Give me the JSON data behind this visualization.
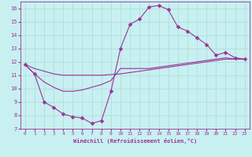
{
  "xlabel": "Windchill (Refroidissement éolien,°C)",
  "bg_color": "#c8f0f0",
  "grid_color": "#b0dede",
  "line_color": "#993399",
  "marker": "D",
  "marker_size": 2.5,
  "xlim": [
    -0.5,
    23.5
  ],
  "ylim": [
    7,
    16.5
  ],
  "xticks": [
    0,
    1,
    2,
    3,
    4,
    5,
    6,
    7,
    8,
    9,
    10,
    11,
    12,
    13,
    14,
    15,
    16,
    17,
    18,
    19,
    20,
    21,
    22,
    23
  ],
  "yticks": [
    7,
    8,
    9,
    10,
    11,
    12,
    13,
    14,
    15,
    16
  ],
  "curve1_x": [
    0,
    1,
    2,
    3,
    4,
    5,
    6,
    7,
    8,
    9,
    10,
    11,
    12,
    13,
    14,
    15,
    16,
    17,
    18,
    19,
    20,
    21,
    22,
    23
  ],
  "curve1_y": [
    11.8,
    11.1,
    9.0,
    8.6,
    8.1,
    7.9,
    7.8,
    7.4,
    7.6,
    9.8,
    13.0,
    14.8,
    15.2,
    16.1,
    16.2,
    15.9,
    14.6,
    14.3,
    13.8,
    13.3,
    12.5,
    12.7,
    12.3,
    12.2
  ],
  "curve2_x": [
    0,
    1,
    2,
    3,
    4,
    5,
    6,
    7,
    8,
    9,
    10,
    11,
    12,
    13,
    14,
    15,
    16,
    17,
    18,
    19,
    20,
    21,
    22,
    23
  ],
  "curve2_y": [
    11.8,
    11.5,
    11.3,
    11.1,
    11.0,
    11.0,
    11.0,
    11.0,
    11.0,
    11.05,
    11.1,
    11.2,
    11.3,
    11.4,
    11.5,
    11.6,
    11.7,
    11.8,
    11.9,
    12.0,
    12.1,
    12.2,
    12.2,
    12.2
  ],
  "curve3_x": [
    0,
    1,
    2,
    3,
    4,
    5,
    6,
    7,
    8,
    9,
    10,
    11,
    12,
    13,
    14,
    15,
    16,
    17,
    18,
    19,
    20,
    21,
    22,
    23
  ],
  "curve3_y": [
    11.8,
    11.1,
    10.5,
    10.1,
    9.8,
    9.8,
    9.9,
    10.1,
    10.3,
    10.6,
    11.5,
    11.5,
    11.5,
    11.5,
    11.6,
    11.7,
    11.8,
    11.9,
    12.0,
    12.1,
    12.2,
    12.3,
    12.2,
    12.2
  ]
}
